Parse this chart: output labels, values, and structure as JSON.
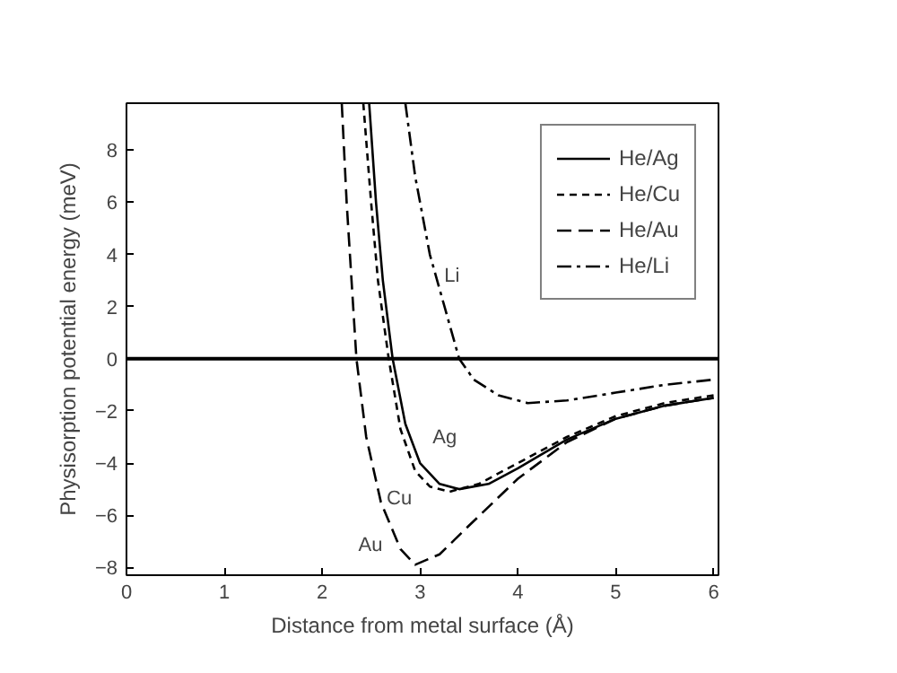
{
  "chart_data": {
    "type": "line",
    "xlabel": "Distance from metal surface (Å)",
    "ylabel": "Physisorption potential energy (meV)",
    "xlim": [
      0,
      6.05
    ],
    "xticks": [
      0,
      1,
      2,
      3,
      4,
      5,
      6
    ],
    "ylim": [
      -8.3,
      9.8
    ],
    "yticks": [
      -8,
      -6,
      -4,
      -2,
      0,
      2,
      4,
      6,
      8
    ],
    "grid": false,
    "legend": "top right",
    "ref_lines": [
      {
        "axis": "y",
        "value": 0,
        "color": "#000000",
        "line_style": "solid"
      }
    ],
    "annotations": [
      {
        "text": "Li",
        "x": 3.1,
        "y": 4
      },
      {
        "text": "Ag",
        "x": 3.0,
        "y": -4
      },
      {
        "text": "Cu",
        "x": 3.1,
        "y": -4.9
      },
      {
        "text": "Au",
        "x": 2.8,
        "y": -7.3
      }
    ],
    "series": [
      {
        "name": "He/Ag",
        "color": "#000000",
        "line_style": "solid",
        "x": [
          2.48,
          2.55,
          2.62,
          2.72,
          2.85,
          3.0,
          3.2,
          3.4,
          3.7,
          4.0,
          4.5,
          5.0,
          5.5,
          6.0
        ],
        "values": [
          9.8,
          6,
          3,
          0,
          -2.5,
          -4,
          -4.8,
          -5.0,
          -4.8,
          -4.2,
          -3.1,
          -2.3,
          -1.8,
          -1.5
        ]
      },
      {
        "name": "He/Cu",
        "color": "#000000",
        "line_style": "dashed",
        "x": [
          2.42,
          2.5,
          2.57,
          2.68,
          2.8,
          2.95,
          3.1,
          3.3,
          3.6,
          4.0,
          4.5,
          5.0,
          5.5,
          6.0
        ],
        "values": [
          9.8,
          6,
          3,
          0,
          -2.7,
          -4.3,
          -4.9,
          -5.1,
          -4.8,
          -4.0,
          -3.0,
          -2.2,
          -1.7,
          -1.4
        ]
      },
      {
        "name": "He/Au",
        "color": "#000000",
        "line_style": "longdash",
        "x": [
          2.2,
          2.25,
          2.3,
          2.35,
          2.45,
          2.6,
          2.8,
          2.95,
          3.2,
          3.5,
          4.0,
          4.5,
          5.0,
          5.5,
          6.0
        ],
        "values": [
          9.8,
          6,
          3,
          0,
          -3,
          -5.5,
          -7.3,
          -7.9,
          -7.5,
          -6.4,
          -4.6,
          -3.2,
          -2.3,
          -1.8,
          -1.5
        ]
      },
      {
        "name": "He/Li",
        "color": "#000000",
        "line_style": "dashdot",
        "x": [
          2.85,
          2.95,
          3.1,
          3.25,
          3.4,
          3.55,
          3.8,
          4.1,
          4.5,
          5.0,
          5.5,
          6.0
        ],
        "values": [
          9.8,
          7,
          4,
          2,
          0,
          -0.8,
          -1.4,
          -1.7,
          -1.6,
          -1.3,
          -1.0,
          -0.8
        ]
      }
    ]
  }
}
